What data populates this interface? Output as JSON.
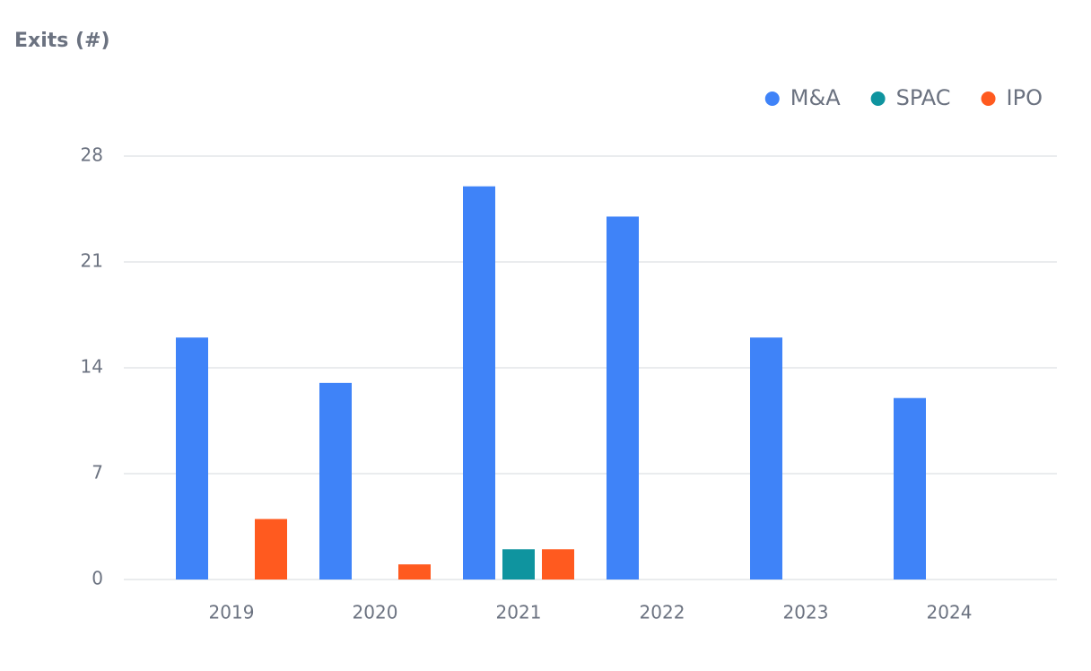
{
  "chart_data": {
    "type": "bar",
    "title": "Exits (#)",
    "categories": [
      "2019",
      "2020",
      "2021",
      "2022",
      "2023",
      "2024"
    ],
    "series": [
      {
        "name": "M&A",
        "color": "#3f83f8",
        "values": [
          16,
          13,
          26,
          24,
          16,
          12
        ]
      },
      {
        "name": "SPAC",
        "color": "#0f949f",
        "values": [
          0,
          0,
          2,
          0,
          0,
          0
        ]
      },
      {
        "name": "IPO",
        "color": "#ff5a1f",
        "values": [
          4,
          1,
          2,
          0,
          0,
          0
        ]
      }
    ],
    "ylim": [
      0,
      28
    ],
    "yticks": [
      0,
      7,
      14,
      21,
      28
    ],
    "grid": true,
    "legend": "top-right"
  }
}
